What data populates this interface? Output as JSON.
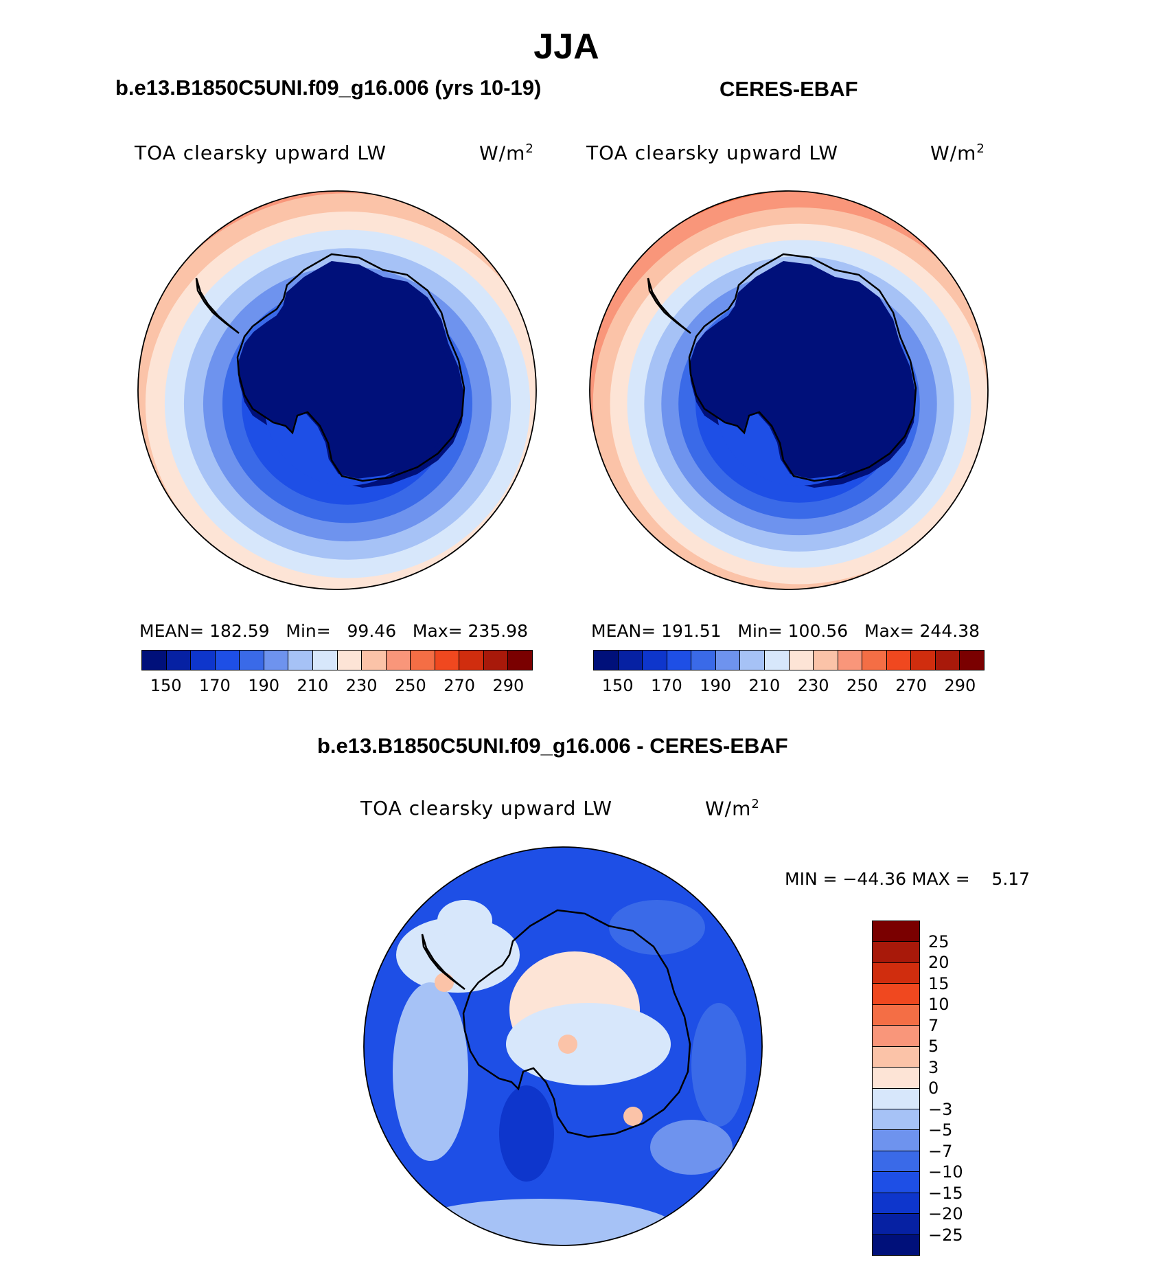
{
  "page": {
    "title": "JJA",
    "case1_title": "b.e13.B1850C5UNI.f09_g16.006 (yrs 10-19)",
    "case2_title": "CERES-EBAF",
    "diff_title": "b.e13.B1850C5UNI.f09_g16.006 - CERES-EBAF"
  },
  "chart_data": [
    {
      "type": "heatmap",
      "projection": "south polar stereographic",
      "variable": "TOA clearsky upward LW",
      "units": "W/m",
      "units_sup": "2",
      "stats": {
        "mean": "182.59",
        "min": "99.46",
        "max": "235.98"
      },
      "stats_text": "MEAN= 182.59   Min=   99.46   Max= 235.98",
      "colorbar_levels": [
        150,
        160,
        170,
        180,
        190,
        200,
        210,
        220,
        230,
        240,
        250,
        260,
        270,
        280,
        290
      ],
      "colorbar_labels": [
        "150",
        "170",
        "190",
        "210",
        "230",
        "250",
        "270",
        "290"
      ],
      "colors": [
        "#00107a",
        "#0621a3",
        "#0e36cc",
        "#1e4fe6",
        "#3a6ae8",
        "#6e93ee",
        "#a6c2f6",
        "#d7e7fb",
        "#fde4d6",
        "#fbc3a8",
        "#f9967a",
        "#f46e45",
        "#f0481f",
        "#d02d0e",
        "#a8190a",
        "#7a0000"
      ],
      "panel_shading": {
        "polar_cap": "#00107a",
        "zonal_bands_inner_to_outer": [
          170,
          180,
          190,
          200,
          210,
          220,
          230,
          240
        ]
      }
    },
    {
      "type": "heatmap",
      "projection": "south polar stereographic",
      "variable": "TOA clearsky upward LW",
      "units": "W/m",
      "units_sup": "2",
      "stats": {
        "mean": "191.51",
        "min": "100.56",
        "max": "244.38"
      },
      "stats_text": "MEAN= 191.51   Min= 100.56   Max= 244.38",
      "colorbar_levels": [
        150,
        160,
        170,
        180,
        190,
        200,
        210,
        220,
        230,
        240,
        250,
        260,
        270,
        280,
        290
      ],
      "colorbar_labels": [
        "150",
        "170",
        "190",
        "210",
        "230",
        "250",
        "270",
        "290"
      ],
      "colors": [
        "#00107a",
        "#0621a3",
        "#0e36cc",
        "#1e4fe6",
        "#3a6ae8",
        "#6e93ee",
        "#a6c2f6",
        "#d7e7fb",
        "#fde4d6",
        "#fbc3a8",
        "#f9967a",
        "#f46e45",
        "#f0481f",
        "#d02d0e",
        "#a8190a",
        "#7a0000"
      ],
      "panel_shading": {
        "polar_cap": "#00107a",
        "zonal_bands_inner_to_outer": [
          170,
          180,
          190,
          200,
          210,
          220,
          230,
          240,
          250
        ]
      }
    },
    {
      "type": "heatmap",
      "projection": "south polar stereographic",
      "variable": "TOA clearsky upward LW",
      "units": "W/m",
      "units_sup": "2",
      "stats_text": "MIN = −44.36 MAX =    5.17",
      "stats": {
        "min": "-44.36",
        "max": "5.17"
      },
      "colorbar_levels": [
        -25,
        -20,
        -15,
        -10,
        -7,
        -5,
        -3,
        0,
        3,
        5,
        7,
        10,
        15,
        20,
        25
      ],
      "colorbar_labels": [
        "25",
        "20",
        "15",
        "10",
        "7",
        "5",
        "3",
        "0",
        "−3",
        "−5",
        "−7",
        "−10",
        "−15",
        "−20",
        "−25"
      ],
      "colors": [
        "#00107a",
        "#0621a3",
        "#0e36cc",
        "#1e4fe6",
        "#3a6ae8",
        "#6e93ee",
        "#a6c2f6",
        "#d7e7fb",
        "#fde4d6",
        "#fbc3a8",
        "#f9967a",
        "#f46e45",
        "#f0481f",
        "#d02d0e",
        "#a8190a",
        "#7a0000"
      ],
      "panel_shading": {
        "dominant": "#1e4fe6"
      }
    }
  ]
}
